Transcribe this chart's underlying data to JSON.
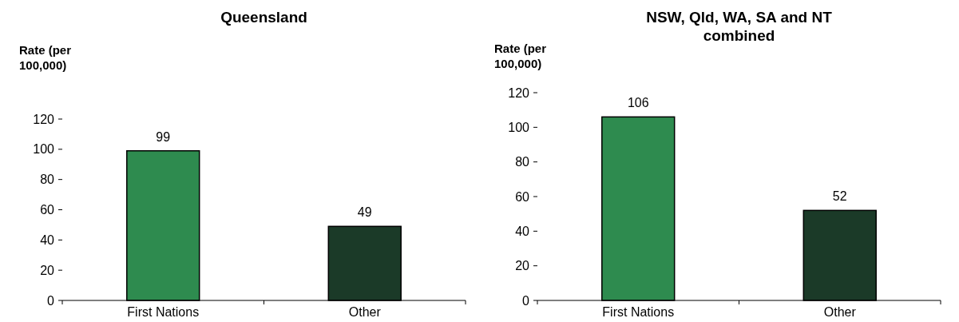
{
  "chart_data": [
    {
      "type": "bar",
      "title": "Queensland",
      "ylabel": "Rate (per 100,000)",
      "categories": [
        "First Nations",
        "Other"
      ],
      "values": [
        99,
        49
      ],
      "colors": [
        "#2e8b4f",
        "#1b3a28"
      ],
      "ylim": [
        0,
        120
      ],
      "yticks": [
        0,
        20,
        40,
        60,
        80,
        100,
        120
      ],
      "data_labels": true
    },
    {
      "type": "bar",
      "title": "NSW, Qld, WA, SA and NT combined",
      "ylabel": "Rate (per 100,000)",
      "categories": [
        "First Nations",
        "Other"
      ],
      "values": [
        106,
        52
      ],
      "colors": [
        "#2e8b4f",
        "#1b3a28"
      ],
      "ylim": [
        0,
        120
      ],
      "yticks": [
        0,
        20,
        40,
        60,
        80,
        100,
        120
      ],
      "data_labels": true
    }
  ]
}
